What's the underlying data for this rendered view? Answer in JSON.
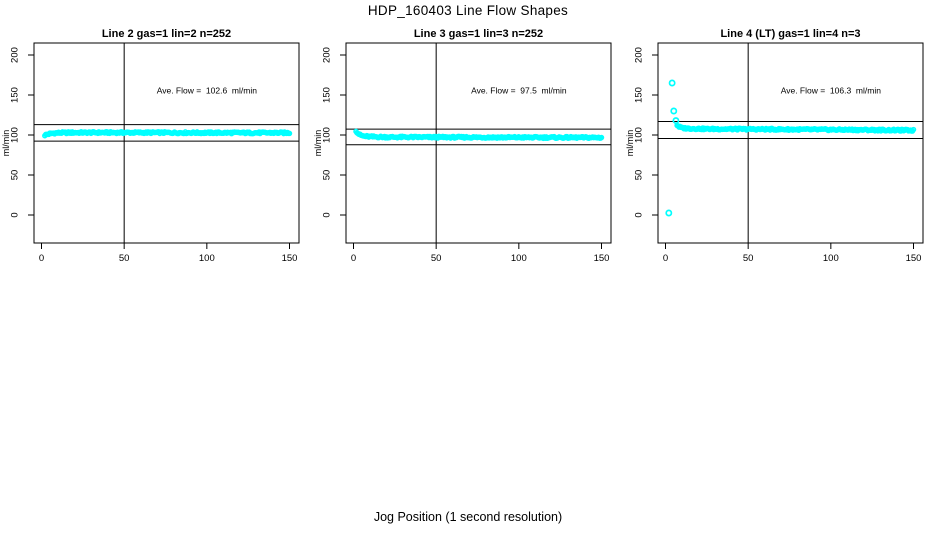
{
  "figure": {
    "title": "HDP_160403  Line Flow Shapes",
    "xlabel": "Jog Position (1 second resolution)",
    "background": "#ffffff",
    "point_color": "#00ffff",
    "line_color": "#000000"
  },
  "chart_data": [
    {
      "type": "scatter",
      "title": "Line 2 gas=1 lin=2 n=252",
      "annotation": "Ave. Flow =  102.6  ml/min",
      "ave_flow": 102.6,
      "n": 252,
      "ylabel": "ml/min",
      "xticks": [
        0,
        50,
        100,
        150
      ],
      "yticks": [
        0,
        50,
        100,
        150,
        200
      ],
      "xlim": [
        -4.5,
        156
      ],
      "ylim": [
        -35,
        215
      ],
      "vline_x": 50,
      "hlines": [
        112.9,
        92.3
      ],
      "annotation_xy": [
        100,
        152
      ],
      "render_points": 250,
      "band": [
        [
          2,
          99.8
        ],
        [
          3,
          100.5
        ],
        [
          5,
          101.6
        ],
        [
          8,
          102.4
        ],
        [
          12,
          102.8
        ],
        [
          20,
          103
        ],
        [
          60,
          103
        ],
        [
          100,
          102.8
        ],
        [
          150,
          102.7
        ]
      ],
      "outliers": []
    },
    {
      "type": "scatter",
      "title": "Line 3 gas=1 lin=3 n=252",
      "annotation": "Ave. Flow =  97.5  ml/min",
      "ave_flow": 97.5,
      "n": 252,
      "ylabel": "ml/min",
      "xticks": [
        0,
        50,
        100,
        150
      ],
      "yticks": [
        0,
        50,
        100,
        150,
        200
      ],
      "xlim": [
        -4.5,
        156
      ],
      "ylim": [
        -35,
        215
      ],
      "vline_x": 50,
      "hlines": [
        107.3,
        87.8
      ],
      "annotation_xy": [
        100,
        152
      ],
      "render_points": 250,
      "band": [
        [
          1.5,
          105.5
        ],
        [
          2.5,
          102.5
        ],
        [
          4,
          100
        ],
        [
          6,
          98.6
        ],
        [
          10,
          97.9
        ],
        [
          20,
          97.4
        ],
        [
          60,
          97.2
        ],
        [
          100,
          97
        ],
        [
          150,
          96.8
        ]
      ],
      "outliers": []
    },
    {
      "type": "scatter",
      "title": "Line 4 (LT) gas=1 lin=4 n=3",
      "annotation": "Ave. Flow =  106.3  ml/min",
      "ave_flow": 106.3,
      "n": 3,
      "ylabel": "ml/min",
      "xticks": [
        0,
        50,
        100,
        150
      ],
      "yticks": [
        0,
        50,
        100,
        150,
        200
      ],
      "xlim": [
        -4.5,
        156
      ],
      "ylim": [
        -35,
        215
      ],
      "vline_x": 50,
      "hlines": [
        116.9,
        95.7
      ],
      "annotation_xy": [
        100,
        152
      ],
      "render_points": 240,
      "band": [
        [
          7,
          112.5
        ],
        [
          8,
          110.5
        ],
        [
          10,
          108.8
        ],
        [
          14,
          108.2
        ],
        [
          25,
          107.6
        ],
        [
          50,
          107.3
        ],
        [
          90,
          106.8
        ],
        [
          120,
          106.4
        ],
        [
          150,
          105.8
        ]
      ],
      "outliers": [
        [
          2,
          2.5
        ],
        [
          4,
          165
        ],
        [
          5,
          130
        ],
        [
          6.3,
          118
        ]
      ]
    }
  ]
}
